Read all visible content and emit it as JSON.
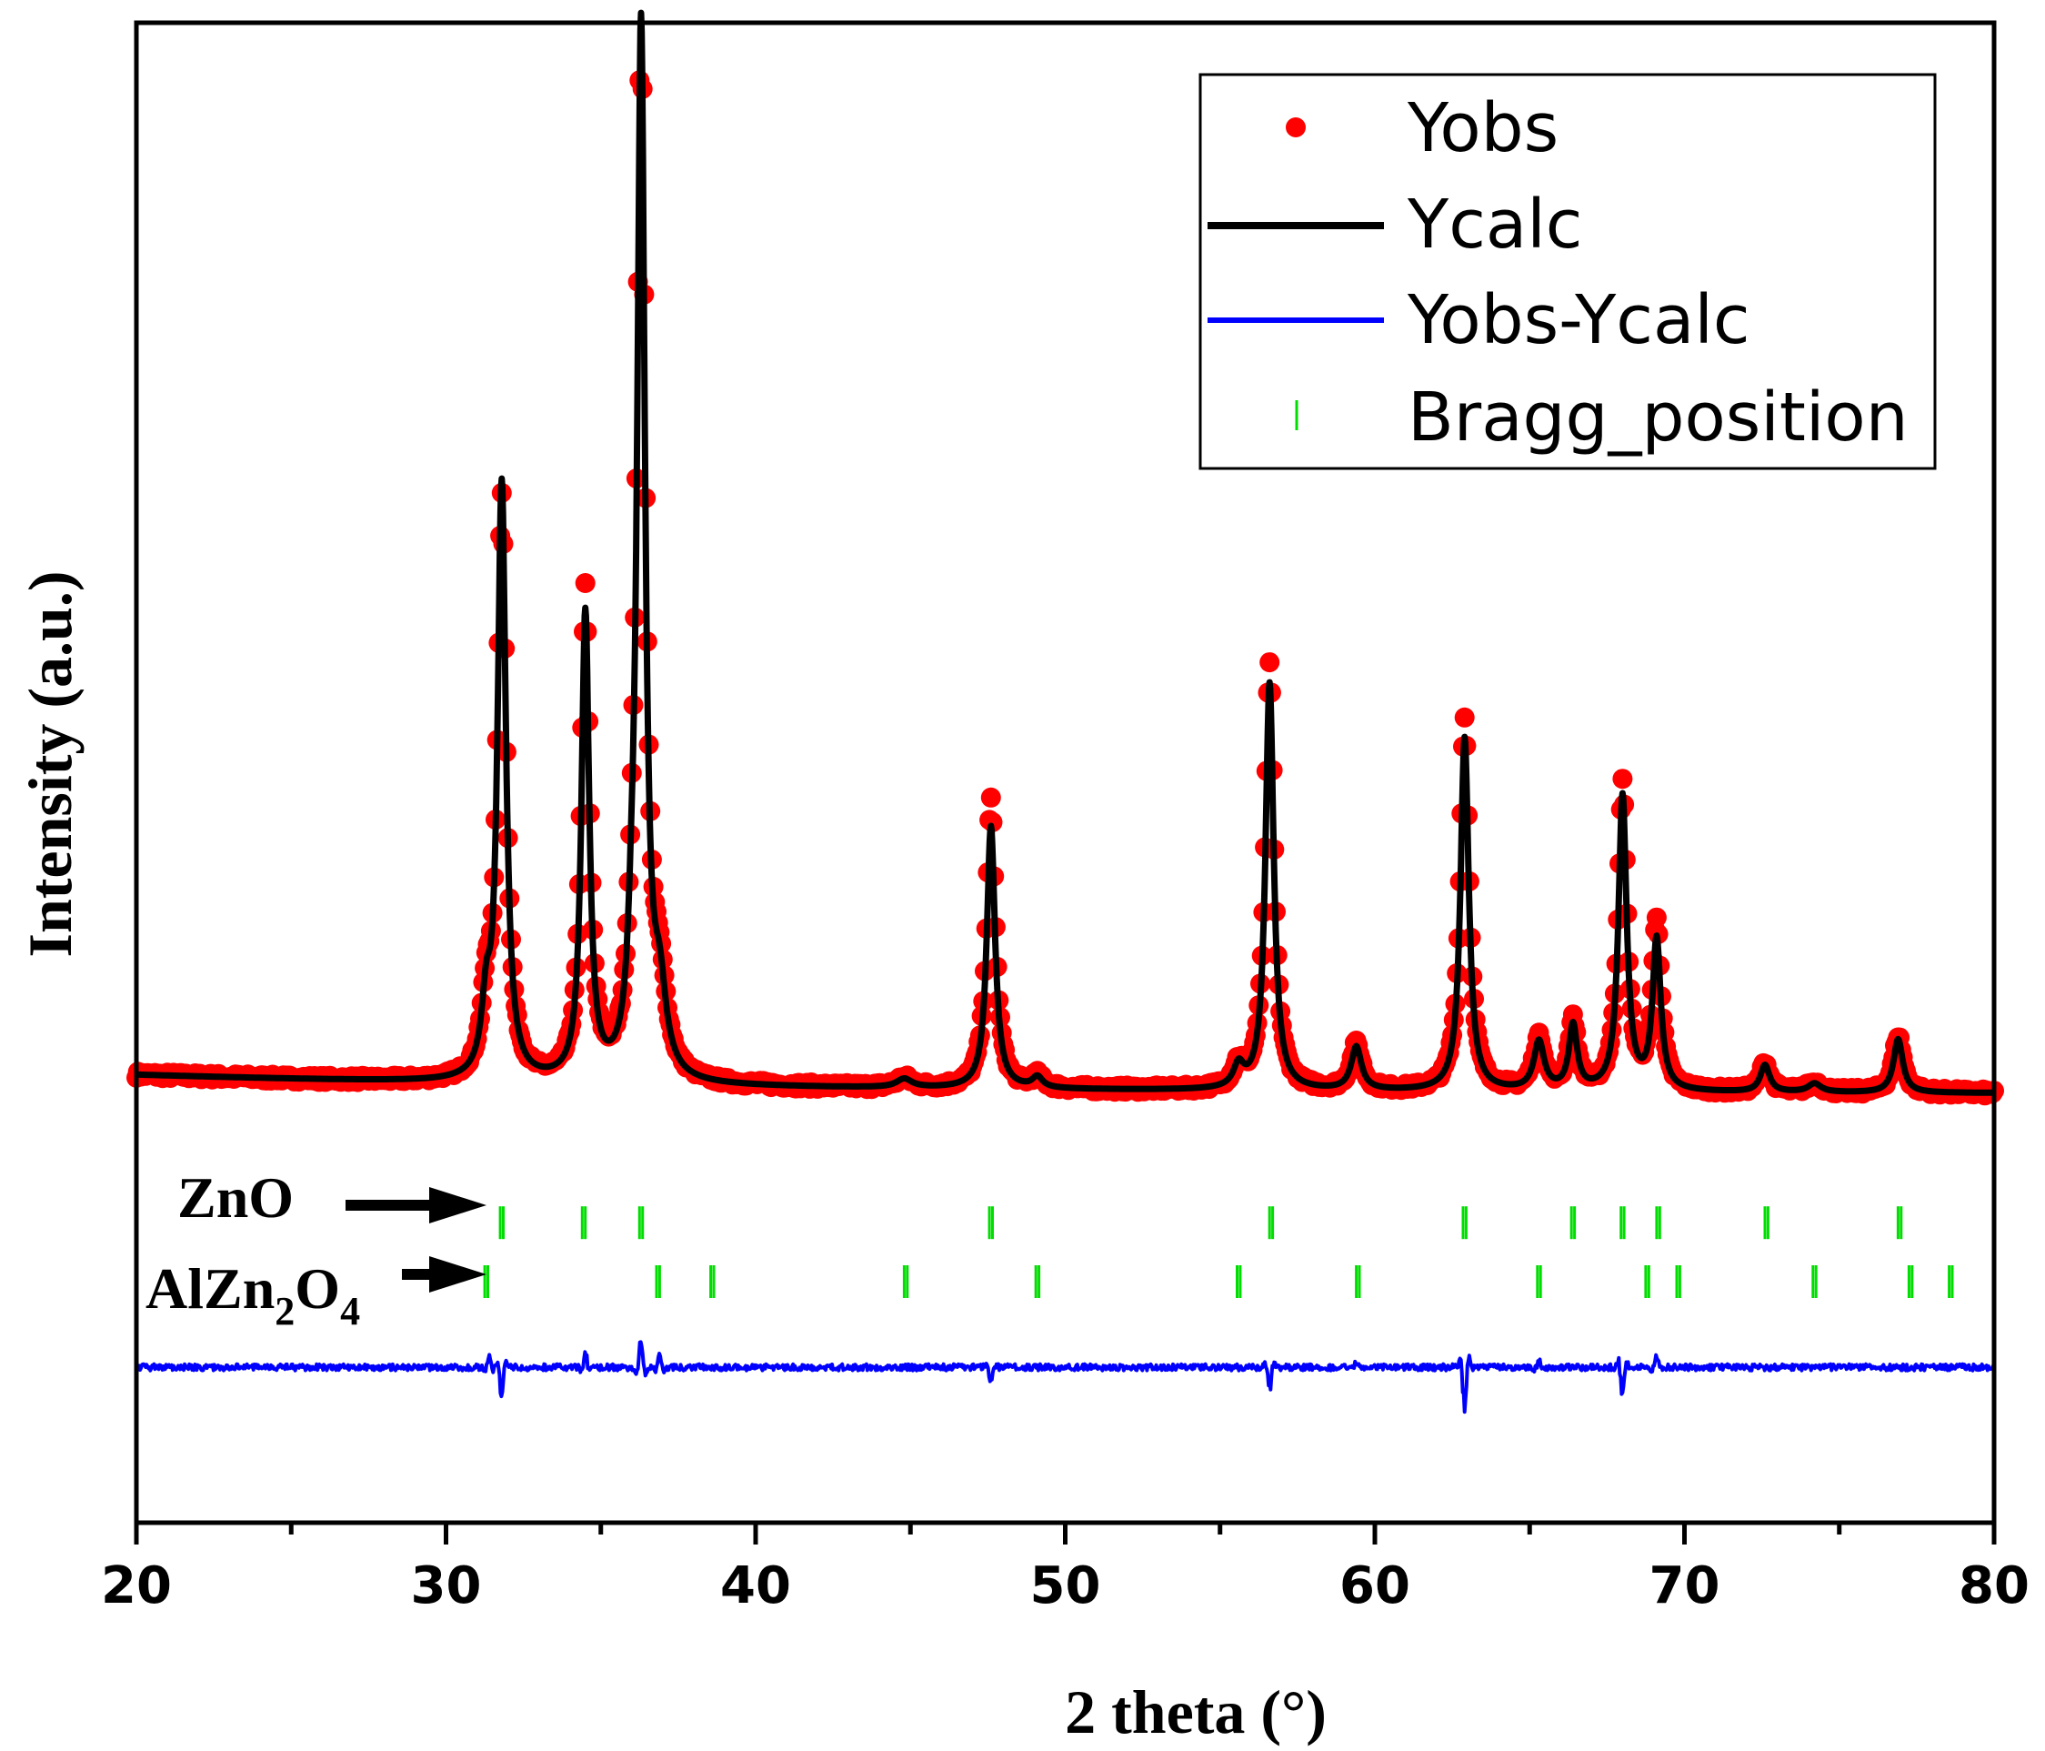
{
  "chart_data": {
    "type": "line",
    "title": "",
    "xlabel": "2 theta (°)",
    "ylabel": "Intensity (a.u.)",
    "xlim": [
      20,
      80
    ],
    "x_ticks": [
      20,
      30,
      40,
      50,
      60,
      70,
      80
    ],
    "y_ticks": [],
    "ylim": [
      -0.4,
      1.0
    ],
    "grid": false,
    "legend": {
      "position": "top-right",
      "entries": [
        {
          "label": "Yobs",
          "marker": "circle",
          "color": "#ff0000"
        },
        {
          "label": "Ycalc",
          "marker": "line",
          "color": "#000000"
        },
        {
          "label": "Yobs-Ycalc",
          "marker": "line",
          "color": "#0000ff"
        },
        {
          "label": "Bragg_position",
          "marker": "vline",
          "color": "#00dd00"
        }
      ]
    },
    "background": 0.0,
    "series": [
      {
        "name": "Ycalc",
        "color": "#000000",
        "peaks": [
          {
            "x": 31.3,
            "h": 0.06,
            "w": 0.18
          },
          {
            "x": 31.8,
            "h": 0.555,
            "w": 0.16
          },
          {
            "x": 34.5,
            "h": 0.435,
            "w": 0.15
          },
          {
            "x": 36.0,
            "h": 0.06,
            "w": 0.15
          },
          {
            "x": 36.3,
            "h": 0.975,
            "w": 0.15
          },
          {
            "x": 36.9,
            "h": 0.07,
            "w": 0.25
          },
          {
            "x": 44.8,
            "h": 0.008,
            "w": 0.3
          },
          {
            "x": 47.6,
            "h": 0.245,
            "w": 0.16
          },
          {
            "x": 49.1,
            "h": 0.01,
            "w": 0.2
          },
          {
            "x": 55.6,
            "h": 0.02,
            "w": 0.2
          },
          {
            "x": 56.6,
            "h": 0.38,
            "w": 0.16
          },
          {
            "x": 59.4,
            "h": 0.04,
            "w": 0.2
          },
          {
            "x": 62.9,
            "h": 0.33,
            "w": 0.16
          },
          {
            "x": 65.3,
            "h": 0.045,
            "w": 0.2
          },
          {
            "x": 66.4,
            "h": 0.06,
            "w": 0.16
          },
          {
            "x": 68.0,
            "h": 0.275,
            "w": 0.16
          },
          {
            "x": 69.1,
            "h": 0.14,
            "w": 0.16
          },
          {
            "x": 72.6,
            "h": 0.025,
            "w": 0.18
          },
          {
            "x": 74.2,
            "h": 0.008,
            "w": 0.25
          },
          {
            "x": 76.9,
            "h": 0.05,
            "w": 0.18
          }
        ]
      },
      {
        "name": "Yobs",
        "color": "#ff0000",
        "peak_heights_observed": [
          {
            "x": 31.8,
            "h": 0.54
          },
          {
            "x": 34.5,
            "h": 0.455
          },
          {
            "x": 36.3,
            "h": 0.995
          },
          {
            "x": 47.6,
            "h": 0.27
          },
          {
            "x": 56.6,
            "h": 0.4
          },
          {
            "x": 62.9,
            "h": 0.35
          },
          {
            "x": 68.0,
            "h": 0.285
          },
          {
            "x": 69.1,
            "h": 0.155
          }
        ]
      },
      {
        "name": "Yobs-Ycalc",
        "color": "#0000ff",
        "offset": -0.255,
        "features": [
          {
            "x": 31.4,
            "a": 0.012
          },
          {
            "x": 31.8,
            "a": -0.025
          },
          {
            "x": 34.5,
            "a": 0.012
          },
          {
            "x": 36.3,
            "a": 0.025
          },
          {
            "x": 36.9,
            "a": 0.012
          },
          {
            "x": 47.6,
            "a": -0.012
          },
          {
            "x": 56.6,
            "a": -0.02
          },
          {
            "x": 59.4,
            "a": 0.006
          },
          {
            "x": 62.9,
            "a": -0.04
          },
          {
            "x": 65.3,
            "a": 0.005
          },
          {
            "x": 68.0,
            "a": -0.025
          },
          {
            "x": 69.1,
            "a": 0.01
          }
        ]
      }
    ],
    "bragg_positions": [
      {
        "phase": "ZnO",
        "row_y": -0.12,
        "positions": [
          31.8,
          34.45,
          36.3,
          47.6,
          56.65,
          62.9,
          66.4,
          68.0,
          69.15,
          72.65,
          76.95
        ]
      },
      {
        "phase": "AlZn2O4",
        "label_main": "AlZn",
        "label_sub1": "2",
        "label_mid": "O",
        "label_sub2": "4",
        "row_y": -0.175,
        "positions": [
          31.3,
          36.85,
          38.6,
          44.85,
          49.1,
          55.6,
          59.45,
          65.3,
          68.8,
          69.8,
          74.2,
          77.3,
          78.6
        ]
      }
    ]
  }
}
